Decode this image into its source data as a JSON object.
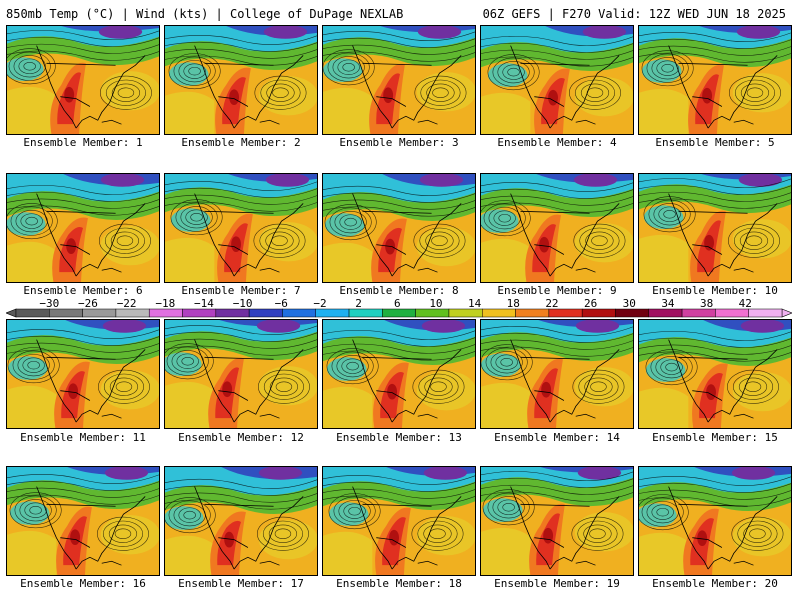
{
  "header": {
    "left": "850mb Temp (°C) | Wind (kts) | College of DuPage NEXLAB",
    "right": "06Z GEFS | F270 Valid: 12Z WED JUN 18 2025"
  },
  "members": [
    {
      "label": "Ensemble Member: 1"
    },
    {
      "label": "Ensemble Member: 2"
    },
    {
      "label": "Ensemble Member: 3"
    },
    {
      "label": "Ensemble Member: 4"
    },
    {
      "label": "Ensemble Member: 5"
    },
    {
      "label": "Ensemble Member: 6"
    },
    {
      "label": "Ensemble Member: 7"
    },
    {
      "label": "Ensemble Member: 8"
    },
    {
      "label": "Ensemble Member: 9"
    },
    {
      "label": "Ensemble Member: 10"
    },
    {
      "label": "Ensemble Member: 11"
    },
    {
      "label": "Ensemble Member: 12"
    },
    {
      "label": "Ensemble Member: 13"
    },
    {
      "label": "Ensemble Member: 14"
    },
    {
      "label": "Ensemble Member: 15"
    },
    {
      "label": "Ensemble Member: 16"
    },
    {
      "label": "Ensemble Member: 17"
    },
    {
      "label": "Ensemble Member: 18"
    },
    {
      "label": "Ensemble Member: 19"
    },
    {
      "label": "Ensemble Member: 20"
    }
  ],
  "colorbar": {
    "labels": [
      "−30",
      "−26",
      "−22",
      "−18",
      "−14",
      "−10",
      "−6",
      "−2",
      "2",
      "6",
      "10",
      "14",
      "18",
      "22",
      "26",
      "30",
      "34",
      "38",
      "42"
    ],
    "colors": [
      "#5a5a5a",
      "#7a7a7a",
      "#9a9a9a",
      "#bababa",
      "#e070e0",
      "#b040c0",
      "#7030a0",
      "#3040c0",
      "#2070e0",
      "#20b0f0",
      "#20d0c0",
      "#20b040",
      "#60c020",
      "#c0d020",
      "#f0c020",
      "#f08020",
      "#e03020",
      "#b01010",
      "#700010",
      "#a01060",
      "#d040a0",
      "#f070d0",
      "#f0b0f0"
    ]
  }
}
